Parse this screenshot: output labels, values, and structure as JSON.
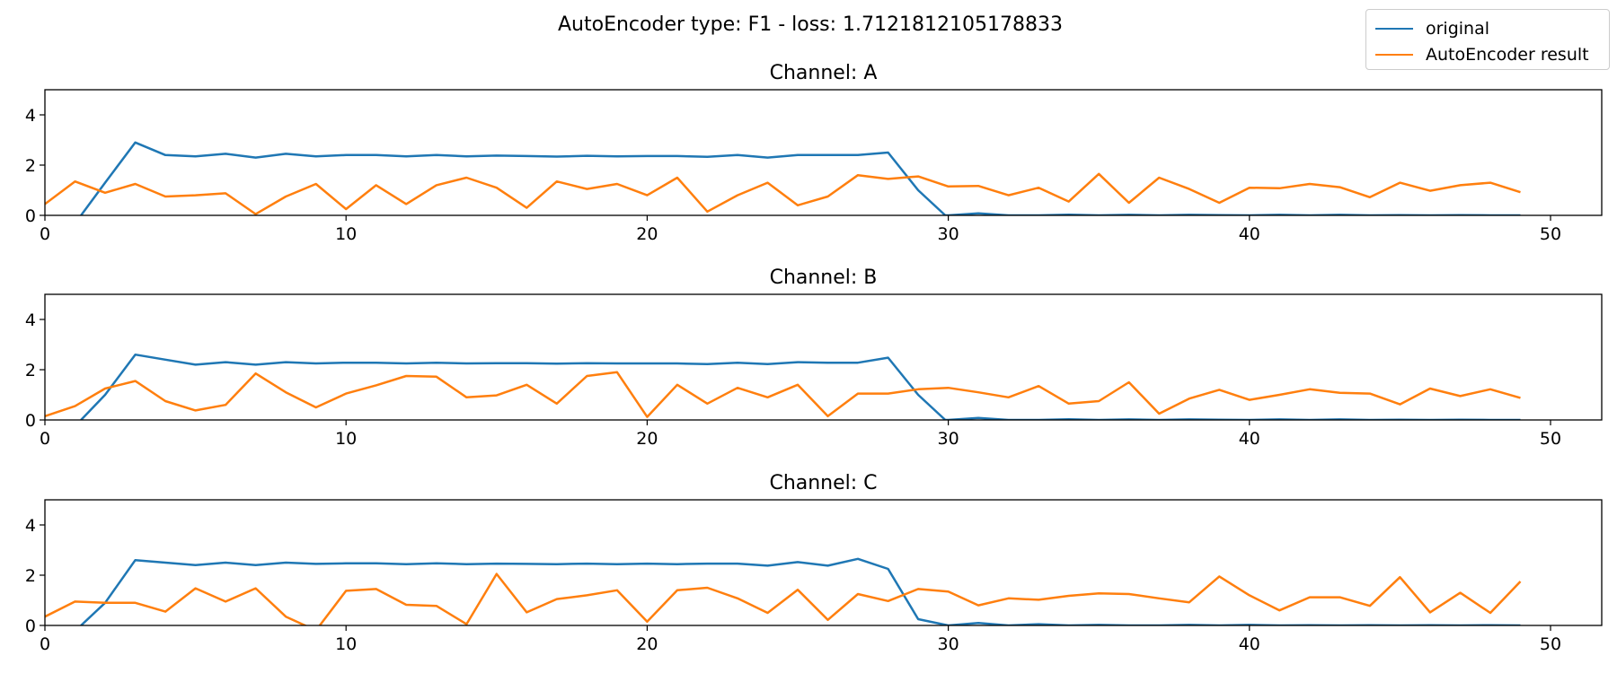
{
  "chart_data": {
    "type": "line",
    "title": "AutoEncoder type: F1 - loss: 1.7121812105178833",
    "legend": {
      "position": "top-right",
      "entries": [
        {
          "label": "original",
          "color": "#1f77b4"
        },
        {
          "label": "AutoEncoder result",
          "color": "#ff7f0e"
        }
      ]
    },
    "xlim": [
      0,
      51.7
    ],
    "ylim": [
      0,
      5
    ],
    "xticks": [
      "0",
      "10",
      "20",
      "30",
      "40",
      "50"
    ],
    "yticks": [
      "0",
      "2",
      "4"
    ],
    "grid": false,
    "panels": [
      {
        "title": "Channel: A",
        "series": [
          {
            "name": "original",
            "color": "#1f77b4",
            "x": [
              1.2,
              2,
              3,
              4,
              5,
              6,
              7,
              8,
              9,
              10,
              11,
              12,
              13,
              14,
              15,
              16,
              17,
              18,
              19,
              20,
              21,
              22,
              23,
              24,
              25,
              26,
              27,
              28,
              29,
              29.9,
              30,
              31,
              32,
              33,
              34,
              35,
              36,
              37,
              38,
              39,
              40,
              41,
              42,
              43,
              44,
              45,
              46,
              47,
              48,
              49
            ],
            "values": [
              0,
              1.3,
              2.9,
              2.4,
              2.35,
              2.45,
              2.3,
              2.45,
              2.35,
              2.4,
              2.4,
              2.35,
              2.4,
              2.35,
              2.38,
              2.36,
              2.34,
              2.37,
              2.35,
              2.36,
              2.36,
              2.33,
              2.4,
              2.3,
              2.4,
              2.4,
              2.4,
              2.5,
              1.0,
              0,
              0,
              0.08,
              0,
              0,
              0.03,
              0,
              0.02,
              0,
              0.02,
              0.01,
              0,
              0.02,
              0,
              0.02,
              0,
              0.01,
              0,
              0.01,
              0,
              0
            ]
          },
          {
            "name": "AutoEncoder result",
            "color": "#ff7f0e",
            "x": [
              0,
              1,
              2,
              3,
              4,
              5,
              6,
              7,
              8,
              9,
              10,
              11,
              12,
              13,
              14,
              15,
              16,
              17,
              18,
              19,
              20,
              21,
              22,
              23,
              24,
              25,
              26,
              27,
              28,
              29,
              30,
              31,
              32,
              33,
              34,
              35,
              36,
              37,
              38,
              39,
              40,
              41,
              42,
              43,
              44,
              45,
              46,
              47,
              48,
              49
            ],
            "values": [
              0.45,
              1.35,
              0.9,
              1.25,
              0.75,
              0.8,
              0.88,
              0.05,
              0.75,
              1.25,
              0.25,
              1.2,
              0.45,
              1.2,
              1.5,
              1.1,
              0.3,
              1.35,
              1.05,
              1.25,
              0.8,
              1.5,
              0.15,
              0.8,
              1.3,
              0.4,
              0.75,
              1.6,
              1.45,
              1.55,
              1.15,
              1.17,
              0.8,
              1.1,
              0.55,
              1.65,
              0.5,
              1.5,
              1.05,
              0.5,
              1.1,
              1.08,
              1.25,
              1.12,
              0.72,
              1.3,
              0.98,
              1.2,
              1.3,
              0.92
            ]
          }
        ]
      },
      {
        "title": "Channel: B",
        "series": [
          {
            "name": "original",
            "color": "#1f77b4",
            "x": [
              1.2,
              2,
              3,
              4,
              5,
              6,
              7,
              8,
              9,
              10,
              11,
              12,
              13,
              14,
              15,
              16,
              17,
              18,
              19,
              20,
              21,
              22,
              23,
              24,
              25,
              26,
              27,
              28,
              29,
              29.9,
              30,
              31,
              32,
              33,
              34,
              35,
              36,
              37,
              38,
              39,
              40,
              41,
              42,
              43,
              44,
              45,
              46,
              47,
              48,
              49
            ],
            "values": [
              0,
              1.0,
              2.6,
              2.4,
              2.2,
              2.3,
              2.2,
              2.3,
              2.25,
              2.28,
              2.28,
              2.25,
              2.28,
              2.25,
              2.26,
              2.26,
              2.24,
              2.26,
              2.25,
              2.25,
              2.25,
              2.22,
              2.28,
              2.22,
              2.3,
              2.28,
              2.28,
              2.48,
              1.0,
              0,
              0,
              0.08,
              0,
              0,
              0.03,
              0,
              0.02,
              0,
              0.02,
              0.01,
              0,
              0.02,
              0,
              0.02,
              0,
              0.01,
              0,
              0.01,
              0,
              0
            ]
          },
          {
            "name": "AutoEncoder result",
            "color": "#ff7f0e",
            "x": [
              0,
              1,
              2,
              3,
              4,
              5,
              6,
              7,
              8,
              9,
              10,
              11,
              12,
              13,
              14,
              15,
              16,
              17,
              18,
              19,
              20,
              21,
              22,
              23,
              24,
              25,
              26,
              27,
              28,
              29,
              30,
              31,
              32,
              33,
              34,
              35,
              36,
              37,
              38,
              39,
              40,
              41,
              42,
              43,
              44,
              45,
              46,
              47,
              48,
              49
            ],
            "values": [
              0.15,
              0.55,
              1.25,
              1.55,
              0.75,
              0.38,
              0.6,
              1.85,
              1.1,
              0.5,
              1.05,
              1.38,
              1.75,
              1.72,
              0.9,
              0.98,
              1.4,
              0.65,
              1.75,
              1.9,
              0.12,
              1.4,
              0.65,
              1.28,
              0.9,
              1.4,
              0.15,
              1.05,
              1.05,
              1.22,
              1.28,
              1.1,
              0.9,
              1.35,
              0.65,
              0.75,
              1.5,
              0.25,
              0.85,
              1.2,
              0.8,
              1.0,
              1.22,
              1.08,
              1.05,
              0.62,
              1.25,
              0.95,
              1.22,
              0.88
            ]
          }
        ]
      },
      {
        "title": "Channel: C",
        "series": [
          {
            "name": "original",
            "color": "#1f77b4",
            "x": [
              1.2,
              2,
              3,
              4,
              5,
              6,
              7,
              8,
              9,
              10,
              11,
              12,
              13,
              14,
              15,
              16,
              17,
              18,
              19,
              20,
              21,
              22,
              23,
              24,
              25,
              26,
              27,
              28,
              29,
              30,
              31,
              32,
              33,
              34,
              35,
              36,
              37,
              38,
              39,
              40,
              41,
              42,
              43,
              44,
              45,
              46,
              47,
              48,
              49
            ],
            "values": [
              0,
              0.9,
              2.6,
              2.5,
              2.4,
              2.5,
              2.4,
              2.5,
              2.45,
              2.47,
              2.47,
              2.44,
              2.47,
              2.44,
              2.46,
              2.45,
              2.44,
              2.46,
              2.44,
              2.46,
              2.44,
              2.46,
              2.46,
              2.38,
              2.52,
              2.38,
              2.65,
              2.25,
              0.25,
              0,
              0.1,
              0,
              0.05,
              0,
              0.02,
              0,
              0,
              0.02,
              0,
              0.02,
              0,
              0.01,
              0,
              0.01,
              0,
              0.01,
              0,
              0.01,
              0
            ]
          },
          {
            "name": "AutoEncoder result",
            "color": "#ff7f0e",
            "x": [
              0,
              1,
              2,
              3,
              4,
              5,
              6,
              7,
              8,
              9,
              10,
              11,
              12,
              13,
              14,
              15,
              16,
              17,
              18,
              19,
              20,
              21,
              22,
              23,
              24,
              25,
              26,
              27,
              28,
              29,
              30,
              31,
              32,
              33,
              34,
              35,
              36,
              37,
              38,
              39,
              40,
              41,
              42,
              43,
              44,
              45,
              46,
              47,
              48,
              49
            ],
            "values": [
              0.35,
              0.95,
              0.9,
              0.9,
              0.55,
              1.48,
              0.95,
              1.48,
              0.35,
              -0.2,
              1.38,
              1.45,
              0.82,
              0.78,
              0.05,
              2.05,
              0.52,
              1.05,
              1.2,
              1.4,
              0.15,
              1.4,
              1.5,
              1.08,
              0.5,
              1.42,
              0.22,
              1.25,
              0.97,
              1.45,
              1.35,
              0.8,
              1.08,
              1.02,
              1.18,
              1.28,
              1.25,
              1.08,
              0.92,
              1.95,
              1.2,
              0.6,
              1.12,
              1.12,
              0.78,
              1.92,
              0.52,
              1.3,
              0.5,
              1.75
            ]
          }
        ]
      }
    ]
  }
}
